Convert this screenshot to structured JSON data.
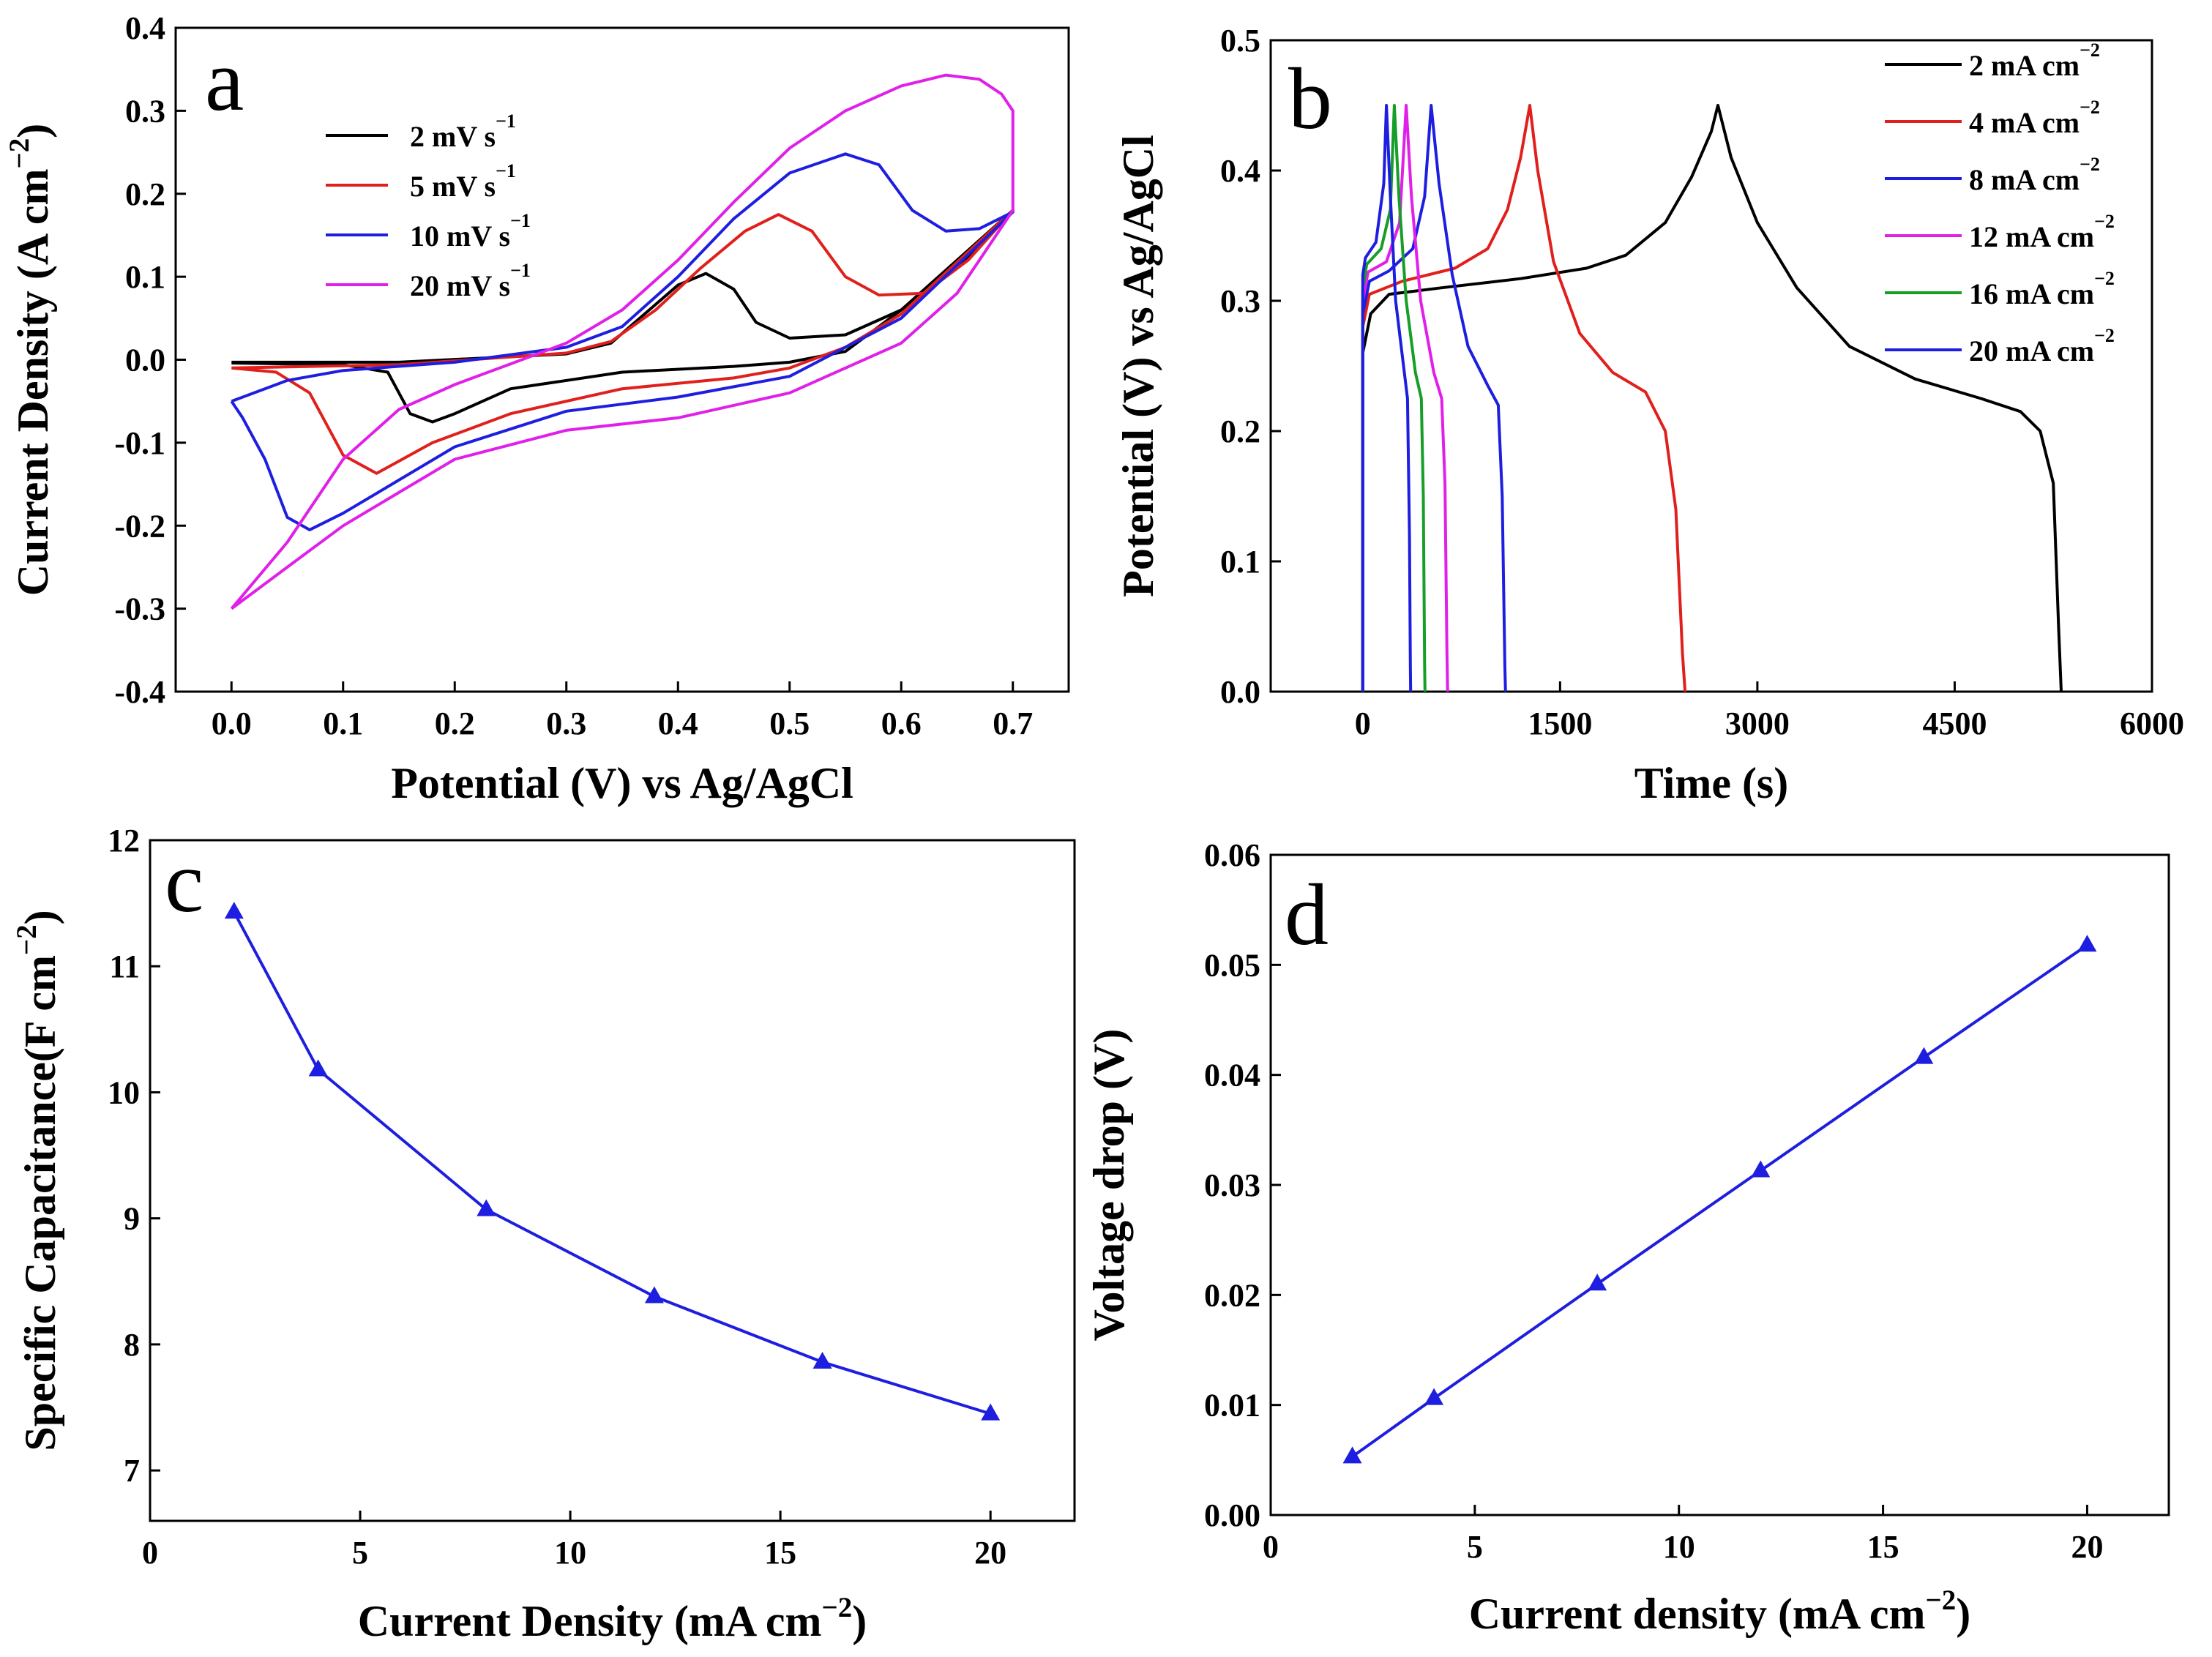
{
  "chart_data": [
    {
      "panel": "a",
      "type": "line",
      "xlabel": "Potential (V) vs Ag/AgCl",
      "ylabel": "Current Density (A cm",
      "ylabel_sup": "−2",
      "ylabel_close": ")",
      "xlim": [
        -0.05,
        0.75
      ],
      "ylim": [
        -0.4,
        0.4
      ],
      "xticks": [
        "0.0",
        "0.1",
        "0.2",
        "0.3",
        "0.4",
        "0.5",
        "0.6",
        "0.7"
      ],
      "yticks": [
        "-0.4",
        "-0.3",
        "-0.2",
        "-0.1",
        "0.0",
        "0.1",
        "0.2",
        "0.3",
        "0.4"
      ],
      "legend": [
        "2  mV s",
        "5  mV s",
        "10  mV s",
        "20  mV s"
      ],
      "legend_sup": "−1",
      "series": [
        {
          "name": "2 mV s-1",
          "color": "#000000",
          "anodic": [
            [
              0.0,
              -0.003
            ],
            [
              0.15,
              -0.003
            ],
            [
              0.3,
              0.007
            ],
            [
              0.34,
              0.02
            ],
            [
              0.37,
              0.055
            ],
            [
              0.4,
              0.09
            ],
            [
              0.425,
              0.104
            ],
            [
              0.45,
              0.085
            ],
            [
              0.47,
              0.045
            ],
            [
              0.5,
              0.026
            ],
            [
              0.55,
              0.03
            ],
            [
              0.6,
              0.06
            ],
            [
              0.65,
              0.11
            ],
            [
              0.7,
              0.18
            ]
          ],
          "cathodic": [
            [
              0.7,
              0.18
            ],
            [
              0.6,
              0.06
            ],
            [
              0.55,
              0.01
            ],
            [
              0.5,
              -0.003
            ],
            [
              0.45,
              -0.008
            ],
            [
              0.35,
              -0.015
            ],
            [
              0.25,
              -0.035
            ],
            [
              0.2,
              -0.065
            ],
            [
              0.18,
              -0.075
            ],
            [
              0.16,
              -0.065
            ],
            [
              0.14,
              -0.015
            ],
            [
              0.1,
              -0.006
            ],
            [
              0.0,
              -0.004
            ]
          ]
        },
        {
          "name": "5 mV s-1",
          "color": "#e0201c",
          "anodic": [
            [
              0.0,
              -0.01
            ],
            [
              0.15,
              -0.006
            ],
            [
              0.3,
              0.008
            ],
            [
              0.34,
              0.022
            ],
            [
              0.38,
              0.06
            ],
            [
              0.42,
              0.11
            ],
            [
              0.46,
              0.155
            ],
            [
              0.49,
              0.175
            ],
            [
              0.52,
              0.155
            ],
            [
              0.55,
              0.1
            ],
            [
              0.58,
              0.078
            ],
            [
              0.62,
              0.08
            ],
            [
              0.66,
              0.12
            ],
            [
              0.7,
              0.18
            ]
          ],
          "cathodic": [
            [
              0.7,
              0.18
            ],
            [
              0.6,
              0.055
            ],
            [
              0.55,
              0.015
            ],
            [
              0.5,
              -0.01
            ],
            [
              0.45,
              -0.022
            ],
            [
              0.35,
              -0.035
            ],
            [
              0.25,
              -0.065
            ],
            [
              0.18,
              -0.1
            ],
            [
              0.13,
              -0.137
            ],
            [
              0.1,
              -0.115
            ],
            [
              0.07,
              -0.04
            ],
            [
              0.04,
              -0.015
            ],
            [
              0.0,
              -0.01
            ]
          ]
        },
        {
          "name": "10 mV s-1",
          "color": "#1e1ee0",
          "anodic": [
            [
              0.0,
              -0.05
            ],
            [
              0.05,
              -0.025
            ],
            [
              0.1,
              -0.013
            ],
            [
              0.2,
              -0.003
            ],
            [
              0.3,
              0.015
            ],
            [
              0.35,
              0.04
            ],
            [
              0.4,
              0.1
            ],
            [
              0.45,
              0.17
            ],
            [
              0.5,
              0.225
            ],
            [
              0.55,
              0.248
            ],
            [
              0.58,
              0.235
            ],
            [
              0.61,
              0.18
            ],
            [
              0.64,
              0.155
            ],
            [
              0.67,
              0.158
            ],
            [
              0.7,
              0.178
            ]
          ],
          "cathodic": [
            [
              0.7,
              0.178
            ],
            [
              0.6,
              0.05
            ],
            [
              0.5,
              -0.02
            ],
            [
              0.4,
              -0.045
            ],
            [
              0.3,
              -0.062
            ],
            [
              0.2,
              -0.105
            ],
            [
              0.15,
              -0.145
            ],
            [
              0.1,
              -0.185
            ],
            [
              0.07,
              -0.205
            ],
            [
              0.05,
              -0.19
            ],
            [
              0.03,
              -0.12
            ],
            [
              0.01,
              -0.07
            ],
            [
              0.0,
              -0.05
            ]
          ]
        },
        {
          "name": "20 mV s-1",
          "color": "#e020e8",
          "anodic": [
            [
              0.0,
              -0.3
            ],
            [
              0.05,
              -0.22
            ],
            [
              0.1,
              -0.12
            ],
            [
              0.15,
              -0.06
            ],
            [
              0.2,
              -0.03
            ],
            [
              0.25,
              -0.005
            ],
            [
              0.3,
              0.02
            ],
            [
              0.35,
              0.06
            ],
            [
              0.4,
              0.12
            ],
            [
              0.45,
              0.19
            ],
            [
              0.5,
              0.255
            ],
            [
              0.55,
              0.3
            ],
            [
              0.6,
              0.33
            ],
            [
              0.64,
              0.343
            ],
            [
              0.67,
              0.338
            ],
            [
              0.69,
              0.32
            ],
            [
              0.7,
              0.3
            ]
          ],
          "cathodic": [
            [
              0.7,
              0.3
            ],
            [
              0.7,
              0.18
            ],
            [
              0.65,
              0.08
            ],
            [
              0.6,
              0.02
            ],
            [
              0.5,
              -0.04
            ],
            [
              0.4,
              -0.07
            ],
            [
              0.3,
              -0.085
            ],
            [
              0.2,
              -0.12
            ],
            [
              0.15,
              -0.16
            ],
            [
              0.1,
              -0.2
            ],
            [
              0.05,
              -0.25
            ],
            [
              0.0,
              -0.3
            ]
          ]
        }
      ]
    },
    {
      "panel": "b",
      "type": "line",
      "xlabel": "Time (s)",
      "ylabel": "Potential (V) vs Ag/AgCl",
      "xlim": [
        -700,
        6000
      ],
      "ylim": [
        0.0,
        0.5
      ],
      "xticks": [
        "0",
        "1500",
        "3000",
        "4500",
        "6000"
      ],
      "yticks": [
        "0.0",
        "0.1",
        "0.2",
        "0.3",
        "0.4",
        "0.5"
      ],
      "legend": [
        "2  mA cm",
        "4  mA cm",
        "8  mA cm",
        "12 mA cm",
        "16 mA cm",
        "20 mA cm"
      ],
      "legend_sup": "−2",
      "series": [
        {
          "name": "2 mA cm-2",
          "color": "#000000",
          "points": [
            [
              0,
              0.0
            ],
            [
              0,
              0.26
            ],
            [
              60,
              0.29
            ],
            [
              200,
              0.305
            ],
            [
              600,
              0.31
            ],
            [
              1200,
              0.317
            ],
            [
              1700,
              0.325
            ],
            [
              2000,
              0.335
            ],
            [
              2300,
              0.36
            ],
            [
              2500,
              0.395
            ],
            [
              2650,
              0.43
            ],
            [
              2700,
              0.45
            ],
            [
              2800,
              0.41
            ],
            [
              3000,
              0.36
            ],
            [
              3300,
              0.31
            ],
            [
              3700,
              0.265
            ],
            [
              4200,
              0.24
            ],
            [
              4700,
              0.225
            ],
            [
              5000,
              0.215
            ],
            [
              5150,
              0.2
            ],
            [
              5250,
              0.16
            ],
            [
              5290,
              0.05
            ],
            [
              5310,
              0.0
            ]
          ]
        },
        {
          "name": "4 mA cm-2",
          "color": "#e0201c",
          "points": [
            [
              0,
              0.0
            ],
            [
              0,
              0.28
            ],
            [
              50,
              0.305
            ],
            [
              300,
              0.315
            ],
            [
              700,
              0.325
            ],
            [
              950,
              0.34
            ],
            [
              1100,
              0.37
            ],
            [
              1200,
              0.41
            ],
            [
              1270,
              0.45
            ],
            [
              1330,
              0.4
            ],
            [
              1450,
              0.33
            ],
            [
              1650,
              0.275
            ],
            [
              1900,
              0.245
            ],
            [
              2150,
              0.23
            ],
            [
              2300,
              0.2
            ],
            [
              2380,
              0.14
            ],
            [
              2430,
              0.03
            ],
            [
              2450,
              0.0
            ]
          ]
        },
        {
          "name": "8 mA cm-2",
          "color": "#1e1ee0",
          "points": [
            [
              0,
              0.0
            ],
            [
              0,
              0.29
            ],
            [
              50,
              0.315
            ],
            [
              200,
              0.323
            ],
            [
              380,
              0.34
            ],
            [
              470,
              0.38
            ],
            [
              520,
              0.45
            ],
            [
              580,
              0.39
            ],
            [
              680,
              0.32
            ],
            [
              800,
              0.265
            ],
            [
              950,
              0.235
            ],
            [
              1030,
              0.22
            ],
            [
              1060,
              0.15
            ],
            [
              1080,
              0.02
            ],
            [
              1085,
              0.0
            ]
          ]
        },
        {
          "name": "12 mA cm-2",
          "color": "#e020e8",
          "points": [
            [
              0,
              0.0
            ],
            [
              0,
              0.3
            ],
            [
              40,
              0.322
            ],
            [
              180,
              0.33
            ],
            [
              280,
              0.36
            ],
            [
              330,
              0.45
            ],
            [
              370,
              0.38
            ],
            [
              440,
              0.3
            ],
            [
              540,
              0.245
            ],
            [
              600,
              0.225
            ],
            [
              625,
              0.16
            ],
            [
              640,
              0.03
            ],
            [
              645,
              0.0
            ]
          ]
        },
        {
          "name": "16 mA cm-2",
          "color": "#169e28",
          "points": [
            [
              0,
              0.0
            ],
            [
              0,
              0.31
            ],
            [
              30,
              0.328
            ],
            [
              140,
              0.34
            ],
            [
              210,
              0.37
            ],
            [
              240,
              0.45
            ],
            [
              275,
              0.38
            ],
            [
              330,
              0.3
            ],
            [
              400,
              0.245
            ],
            [
              445,
              0.225
            ],
            [
              460,
              0.15
            ],
            [
              470,
              0.02
            ],
            [
              473,
              0.0
            ]
          ]
        },
        {
          "name": "20 mA cm-2",
          "color": "#1e1ee0",
          "points": [
            [
              0,
              0.0
            ],
            [
              0,
              0.32
            ],
            [
              20,
              0.333
            ],
            [
              100,
              0.345
            ],
            [
              160,
              0.39
            ],
            [
              180,
              0.45
            ],
            [
              210,
              0.38
            ],
            [
              250,
              0.3
            ],
            [
              310,
              0.25
            ],
            [
              340,
              0.225
            ],
            [
              355,
              0.12
            ],
            [
              362,
              0.02
            ],
            [
              364,
              0.0
            ]
          ]
        }
      ]
    },
    {
      "panel": "c",
      "type": "line",
      "xlabel": "Current Density (mA cm",
      "xlabel_sup": "−2",
      "xlabel_close": ")",
      "ylabel": "Specific Capacitance(F cm",
      "ylabel_sup": "−2",
      "ylabel_close": ")",
      "xlim": [
        0,
        22
      ],
      "ylim": [
        6.6,
        12
      ],
      "xticks": [
        "0",
        "5",
        "10",
        "15",
        "20"
      ],
      "yticks": [
        "7",
        "8",
        "9",
        "10",
        "11",
        "12"
      ],
      "x": [
        2,
        4,
        8,
        12,
        16,
        20
      ],
      "y": [
        11.43,
        10.18,
        9.07,
        8.38,
        7.86,
        7.45
      ],
      "color": "#1e1ee0"
    },
    {
      "panel": "d",
      "type": "line",
      "xlabel": "Current density (mA cm",
      "xlabel_sup": "−2",
      "xlabel_close": ")",
      "ylabel": "Voltage drop (V)",
      "xlim": [
        0,
        22
      ],
      "ylim": [
        0.0,
        0.06
      ],
      "xticks": [
        "0",
        "5",
        "10",
        "15",
        "20"
      ],
      "yticks": [
        "0.00",
        "0.01",
        "0.02",
        "0.03",
        "0.04",
        "0.05",
        "0.06"
      ],
      "x": [
        2,
        4,
        8,
        12,
        16,
        20
      ],
      "y": [
        0.0053,
        0.0106,
        0.021,
        0.0313,
        0.0416,
        0.0518
      ],
      "color": "#1e1ee0"
    }
  ],
  "panel_labels": [
    "a",
    "b",
    "c",
    "d"
  ]
}
